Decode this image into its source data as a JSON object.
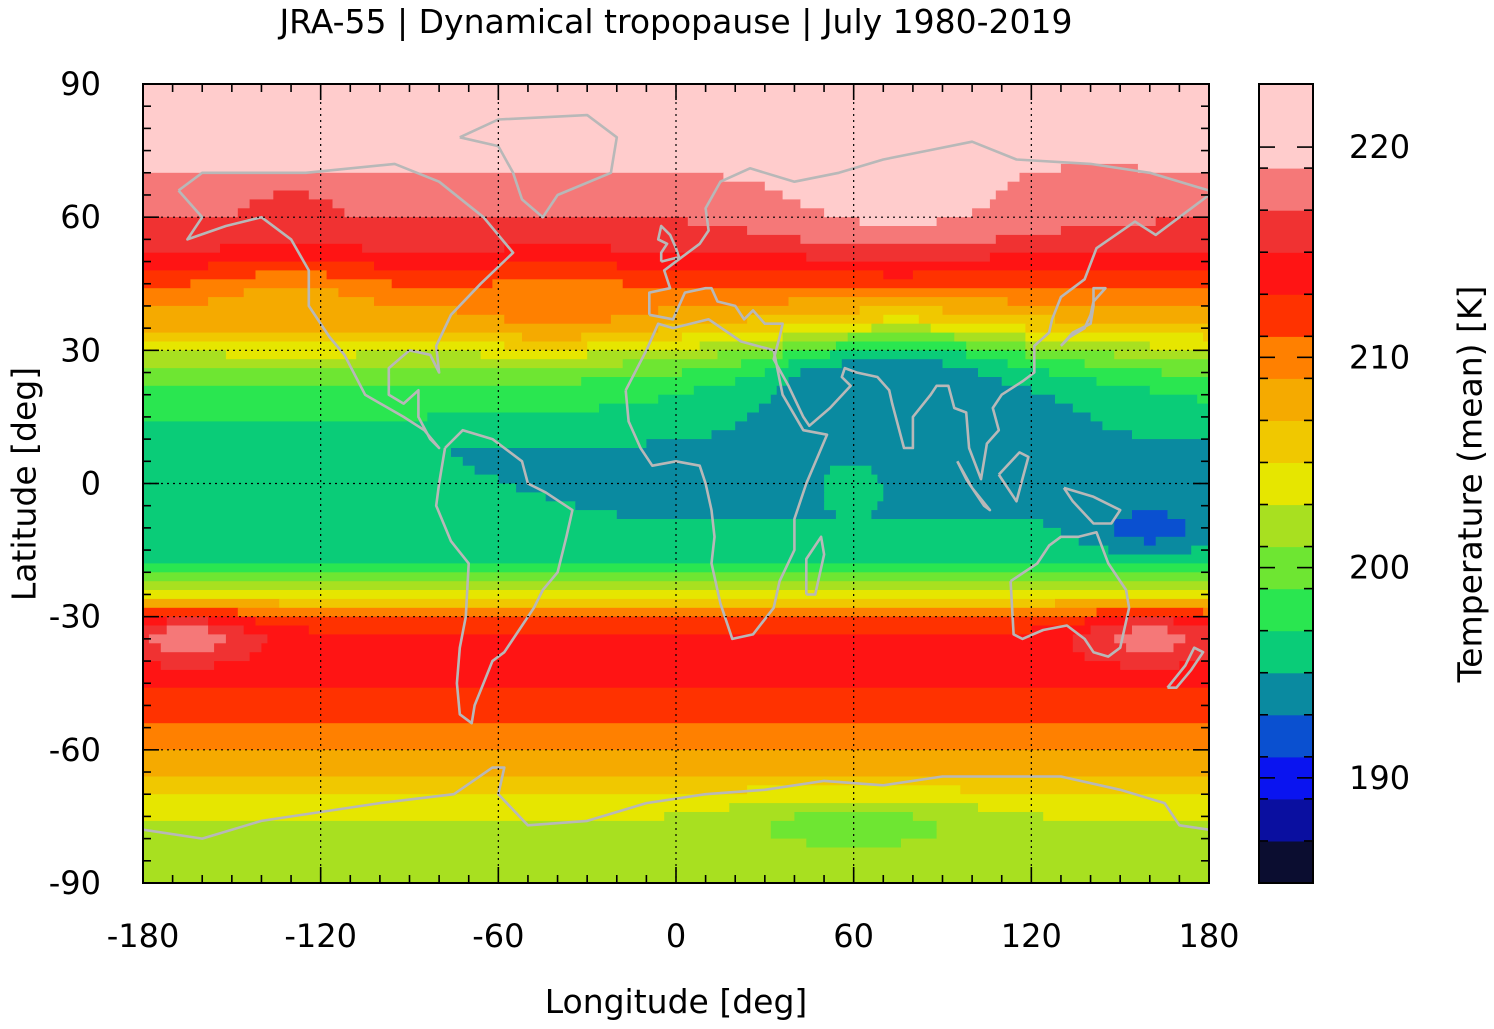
{
  "title": "JRA-55 | Dynamical tropopause | July 1980-2019",
  "chart_data": {
    "type": "heatmap",
    "title": "JRA-55 | Dynamical tropopause | July 1980-2019",
    "xlabel": "Longitude [deg]",
    "ylabel": "Latitude [deg]",
    "colorbar_label": "Temperature (mean) [K]",
    "xlim": [
      -180,
      180
    ],
    "ylim": [
      -90,
      90
    ],
    "x_ticks": [
      -180,
      -120,
      -60,
      0,
      60,
      120,
      180
    ],
    "y_ticks": [
      90,
      60,
      30,
      0,
      -30,
      -60,
      -90
    ],
    "x_tick_labels": [
      "-180",
      "-120",
      "-60",
      "0",
      "60",
      "120",
      "180"
    ],
    "y_tick_labels": [
      "90",
      "60",
      "30",
      "0",
      "-30",
      "-60",
      "-90"
    ],
    "grid": true,
    "coastlines_color": "#b8b8b8",
    "colorbar": {
      "range": [
        185,
        223
      ],
      "ticks": [
        190,
        200,
        210,
        220
      ],
      "tick_labels": [
        "190",
        "200",
        "210",
        "220"
      ],
      "levels": [
        {
          "from": 185,
          "to": 187,
          "color": "#0b0d30"
        },
        {
          "from": 187,
          "to": 189,
          "color": "#0a0fa0"
        },
        {
          "from": 189,
          "to": 191,
          "color": "#0a14f0"
        },
        {
          "from": 191,
          "to": 193,
          "color": "#0a50d0"
        },
        {
          "from": 193,
          "to": 195,
          "color": "#0a8aa0"
        },
        {
          "from": 195,
          "to": 197,
          "color": "#0acc78"
        },
        {
          "from": 197,
          "to": 199,
          "color": "#2ae650"
        },
        {
          "from": 199,
          "to": 201,
          "color": "#6ee632"
        },
        {
          "from": 201,
          "to": 203,
          "color": "#a8e020"
        },
        {
          "from": 203,
          "to": 205,
          "color": "#e6e600"
        },
        {
          "from": 205,
          "to": 207,
          "color": "#f0c800"
        },
        {
          "from": 207,
          "to": 209,
          "color": "#f5aa00"
        },
        {
          "from": 209,
          "to": 211,
          "color": "#ff8000"
        },
        {
          "from": 211,
          "to": 213,
          "color": "#ff3200"
        },
        {
          "from": 213,
          "to": 215,
          "color": "#ff1414"
        },
        {
          "from": 215,
          "to": 217,
          "color": "#f03232"
        },
        {
          "from": 217,
          "to": 219,
          "color": "#f57878"
        },
        {
          "from": 219,
          "to": 223,
          "color": "#ffcccc"
        }
      ]
    },
    "latitude_bands": [
      {
        "lat": 90,
        "value": 221
      },
      {
        "lat": 75,
        "value": 220
      },
      {
        "lat": 65,
        "value": 218
      },
      {
        "lat": 55,
        "value": 216
      },
      {
        "lat": 48,
        "value": 213
      },
      {
        "lat": 42,
        "value": 210
      },
      {
        "lat": 35,
        "value": 207
      },
      {
        "lat": 28,
        "value": 202
      },
      {
        "lat": 22,
        "value": 199
      },
      {
        "lat": 15,
        "value": 197
      },
      {
        "lat": 8,
        "value": 195
      },
      {
        "lat": 0,
        "value": 195
      },
      {
        "lat": -8,
        "value": 195
      },
      {
        "lat": -15,
        "value": 196
      },
      {
        "lat": -20,
        "value": 198
      },
      {
        "lat": -25,
        "value": 204
      },
      {
        "lat": -30,
        "value": 211
      },
      {
        "lat": -35,
        "value": 214
      },
      {
        "lat": -42,
        "value": 214
      },
      {
        "lat": -50,
        "value": 212
      },
      {
        "lat": -58,
        "value": 210
      },
      {
        "lat": -65,
        "value": 207
      },
      {
        "lat": -72,
        "value": 204
      },
      {
        "lat": -80,
        "value": 202
      },
      {
        "lat": -90,
        "value": 202
      }
    ],
    "features": [
      {
        "lon": 75,
        "lat": 20,
        "dlon": 40,
        "dlat": 13,
        "value": 192
      },
      {
        "lon": 50,
        "lat": 20,
        "dlon": 12,
        "dlat": 6,
        "value": 192
      },
      {
        "lon": 160,
        "lat": -10,
        "dlon": 22,
        "dlat": 6,
        "value": 192
      },
      {
        "lon": 60,
        "lat": 1,
        "dlon": 8,
        "dlat": 5,
        "value": 198
      },
      {
        "lon": 85,
        "lat": 15,
        "dlon": 90,
        "dlat": 15,
        "value": 194
      },
      {
        "lon": -165,
        "lat": -35,
        "dlon": 25,
        "dlat": 6,
        "value": 218
      },
      {
        "lon": 160,
        "lat": -35,
        "dlon": 25,
        "dlat": 6,
        "value": 218
      },
      {
        "lon": 75,
        "lat": 65,
        "dlon": 50,
        "dlat": 12,
        "value": 220
      },
      {
        "lon": 140,
        "lat": 65,
        "dlon": 25,
        "dlat": 6,
        "value": 218
      },
      {
        "lon": -130,
        "lat": 62,
        "dlon": 15,
        "dlat": 5,
        "value": 216
      },
      {
        "lon": -130,
        "lat": 40,
        "dlon": 30,
        "dlat": 8,
        "value": 208
      },
      {
        "lon": -40,
        "lat": 40,
        "dlon": 30,
        "dlat": 8,
        "value": 210
      },
      {
        "lon": 60,
        "lat": -77,
        "dlon": 45,
        "dlat": 6,
        "value": 200
      }
    ]
  }
}
